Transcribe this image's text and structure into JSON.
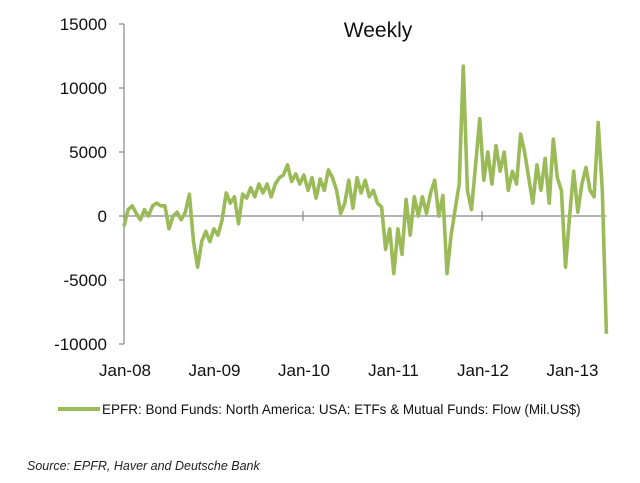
{
  "chart_data": {
    "type": "line",
    "title": "Weekly",
    "xlabel": "",
    "ylabel": "",
    "ylim": [
      -10000,
      15000
    ],
    "yticks": [
      "15000",
      "10000",
      "5000",
      "0",
      "-5000",
      "-10000"
    ],
    "ytick_values": [
      15000,
      10000,
      5000,
      0,
      -5000,
      -10000
    ],
    "xticks": [
      "Jan-08",
      "Jan-09",
      "Jan-10",
      "Jan-11",
      "Jan-12",
      "Jan-13"
    ],
    "xtick_values": [
      2008,
      2009,
      2010,
      2011,
      2012,
      2013
    ],
    "xlim": [
      2008,
      2013.39
    ],
    "grid": false,
    "legend_position": "bottom",
    "series": [
      {
        "name": "EPFR: Bond Funds: North America: USA: ETFs & Mutual Funds: Flow (Mil.US$)",
        "color": "#9bbb59",
        "x_start": 2008.0,
        "x_end": 2013.39,
        "values": [
          -800,
          500,
          800,
          200,
          -300,
          500,
          0,
          800,
          1000,
          800,
          800,
          -1000,
          0,
          300,
          -300,
          300,
          1700,
          -2000,
          -4000,
          -2000,
          -1200,
          -2000,
          -1000,
          -1500,
          -300,
          1800,
          1000,
          1500,
          -600,
          1700,
          1400,
          2200,
          1500,
          2500,
          1800,
          2500,
          1500,
          2500,
          3000,
          3200,
          4000,
          2700,
          3300,
          2500,
          3200,
          2000,
          3000,
          1400,
          2900,
          2000,
          3600,
          3000,
          2000,
          200,
          1000,
          2800,
          600,
          3000,
          1800,
          2800,
          1500,
          2000,
          1000,
          700,
          -2600,
          -1000,
          -4500,
          -1000,
          -3000,
          1300,
          -1500,
          1500,
          0,
          1500,
          200,
          1800,
          2800,
          0,
          1600,
          -4500,
          -1500,
          500,
          2500,
          11700,
          2000,
          500,
          4000,
          7600,
          2800,
          5000,
          2500,
          5500,
          3500,
          5000,
          2000,
          3500,
          2500,
          6400,
          5000,
          3000,
          1000,
          4000,
          2000,
          4500,
          1000,
          6000,
          3000,
          2000,
          -4000,
          0,
          3500,
          300,
          2500,
          3800,
          2000,
          1500,
          7300,
          2000,
          -9200
        ]
      }
    ]
  },
  "source": "Source: EPFR, Haver and Deutsche Bank"
}
